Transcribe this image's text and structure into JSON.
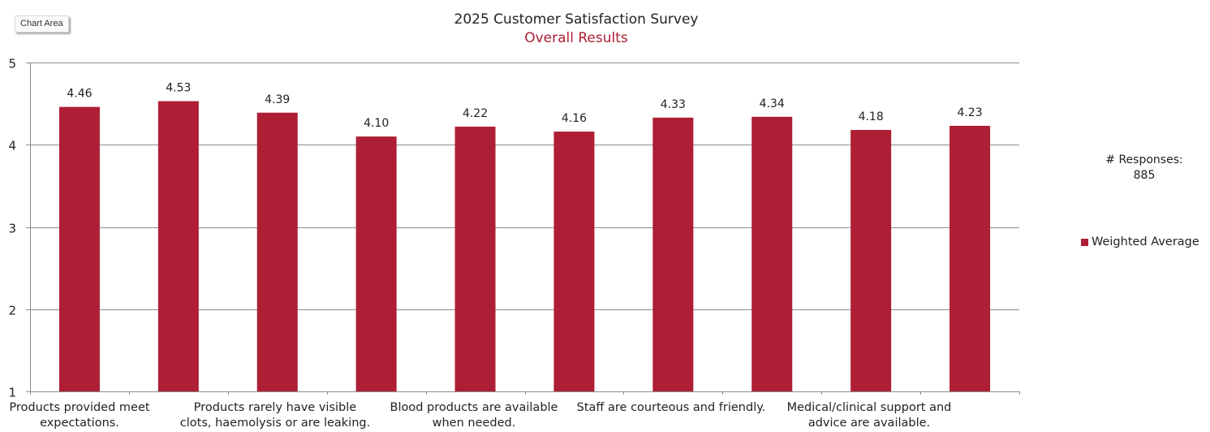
{
  "ui": {
    "chart_area_tag": "Chart Area",
    "responses_label": "# Responses:",
    "responses_value": "885"
  },
  "colors": {
    "bar": "#ae1e35",
    "subtitle": "#ae1e35",
    "gridline": "#8c8c8c",
    "text": "#222222"
  },
  "chart_data": {
    "type": "bar",
    "title": "2025 Customer Satisfaction Survey",
    "subtitle": "Overall Results",
    "xlabel": "",
    "ylabel": "",
    "ylim": [
      1,
      5
    ],
    "yticks": [
      1,
      2,
      3,
      4,
      5
    ],
    "grid": true,
    "legend": {
      "position": "right",
      "entries": [
        "Weighted Average"
      ]
    },
    "categories": [
      "Products provided meet expectations.",
      "",
      "Products rarely have visible clots, haemolysis or are leaking.",
      "",
      "Blood products are available when needed.",
      "",
      "Staff are courteous and friendly.",
      "",
      "Medical/clinical support and advice are available.",
      ""
    ],
    "visible_category_labels": [
      {
        "index": 0,
        "lines": [
          "Products provided meet",
          "expectations."
        ]
      },
      {
        "index": 2,
        "lines": [
          "Products rarely have visible",
          "clots, haemolysis or are leaking."
        ]
      },
      {
        "index": 4,
        "lines": [
          "Blood products are available",
          "when needed."
        ]
      },
      {
        "index": 6,
        "lines": [
          "Staff are courteous and friendly."
        ]
      },
      {
        "index": 8,
        "lines": [
          "Medical/clinical support and",
          "advice are available."
        ]
      }
    ],
    "series": [
      {
        "name": "Weighted Average",
        "values": [
          4.46,
          4.53,
          4.39,
          4.1,
          4.22,
          4.16,
          4.33,
          4.34,
          4.18,
          4.23
        ],
        "labels": [
          "4.46",
          "4.53",
          "4.39",
          "4.10",
          "4.22",
          "4.16",
          "4.33",
          "4.34",
          "4.18",
          "4.23"
        ]
      }
    ]
  }
}
